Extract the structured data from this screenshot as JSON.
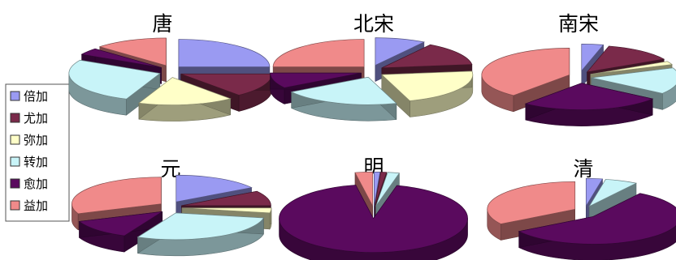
{
  "chart_data": {
    "type": "pie",
    "legend": {
      "placement": "left",
      "entries": [
        {
          "label": "倍加",
          "color": "#9a9af2"
        },
        {
          "label": "尤加",
          "color": "#7a2a4a"
        },
        {
          "label": "弥加",
          "color": "#ffffc8"
        },
        {
          "label": "转加",
          "color": "#c8f4f8"
        },
        {
          "label": "愈加",
          "color": "#5a0a5e"
        },
        {
          "label": "益加",
          "color": "#f08a8a"
        }
      ]
    },
    "charts": [
      {
        "title": "唐",
        "values": [
          25,
          14,
          17,
          27,
          4,
          13
        ]
      },
      {
        "title": "北宋",
        "values": [
          9,
          14,
          22,
          21,
          9,
          25
        ]
      },
      {
        "title": "南宋",
        "values": [
          4,
          13,
          2,
          16,
          26,
          39
        ]
      },
      {
        "title": "元",
        "values": [
          16,
          9,
          3,
          29,
          12,
          31
        ]
      },
      {
        "title": "明",
        "values": [
          1,
          1,
          0,
          2,
          93,
          3
        ]
      },
      {
        "title": "清",
        "values": [
          3,
          0,
          0,
          6,
          57,
          34
        ]
      }
    ]
  }
}
